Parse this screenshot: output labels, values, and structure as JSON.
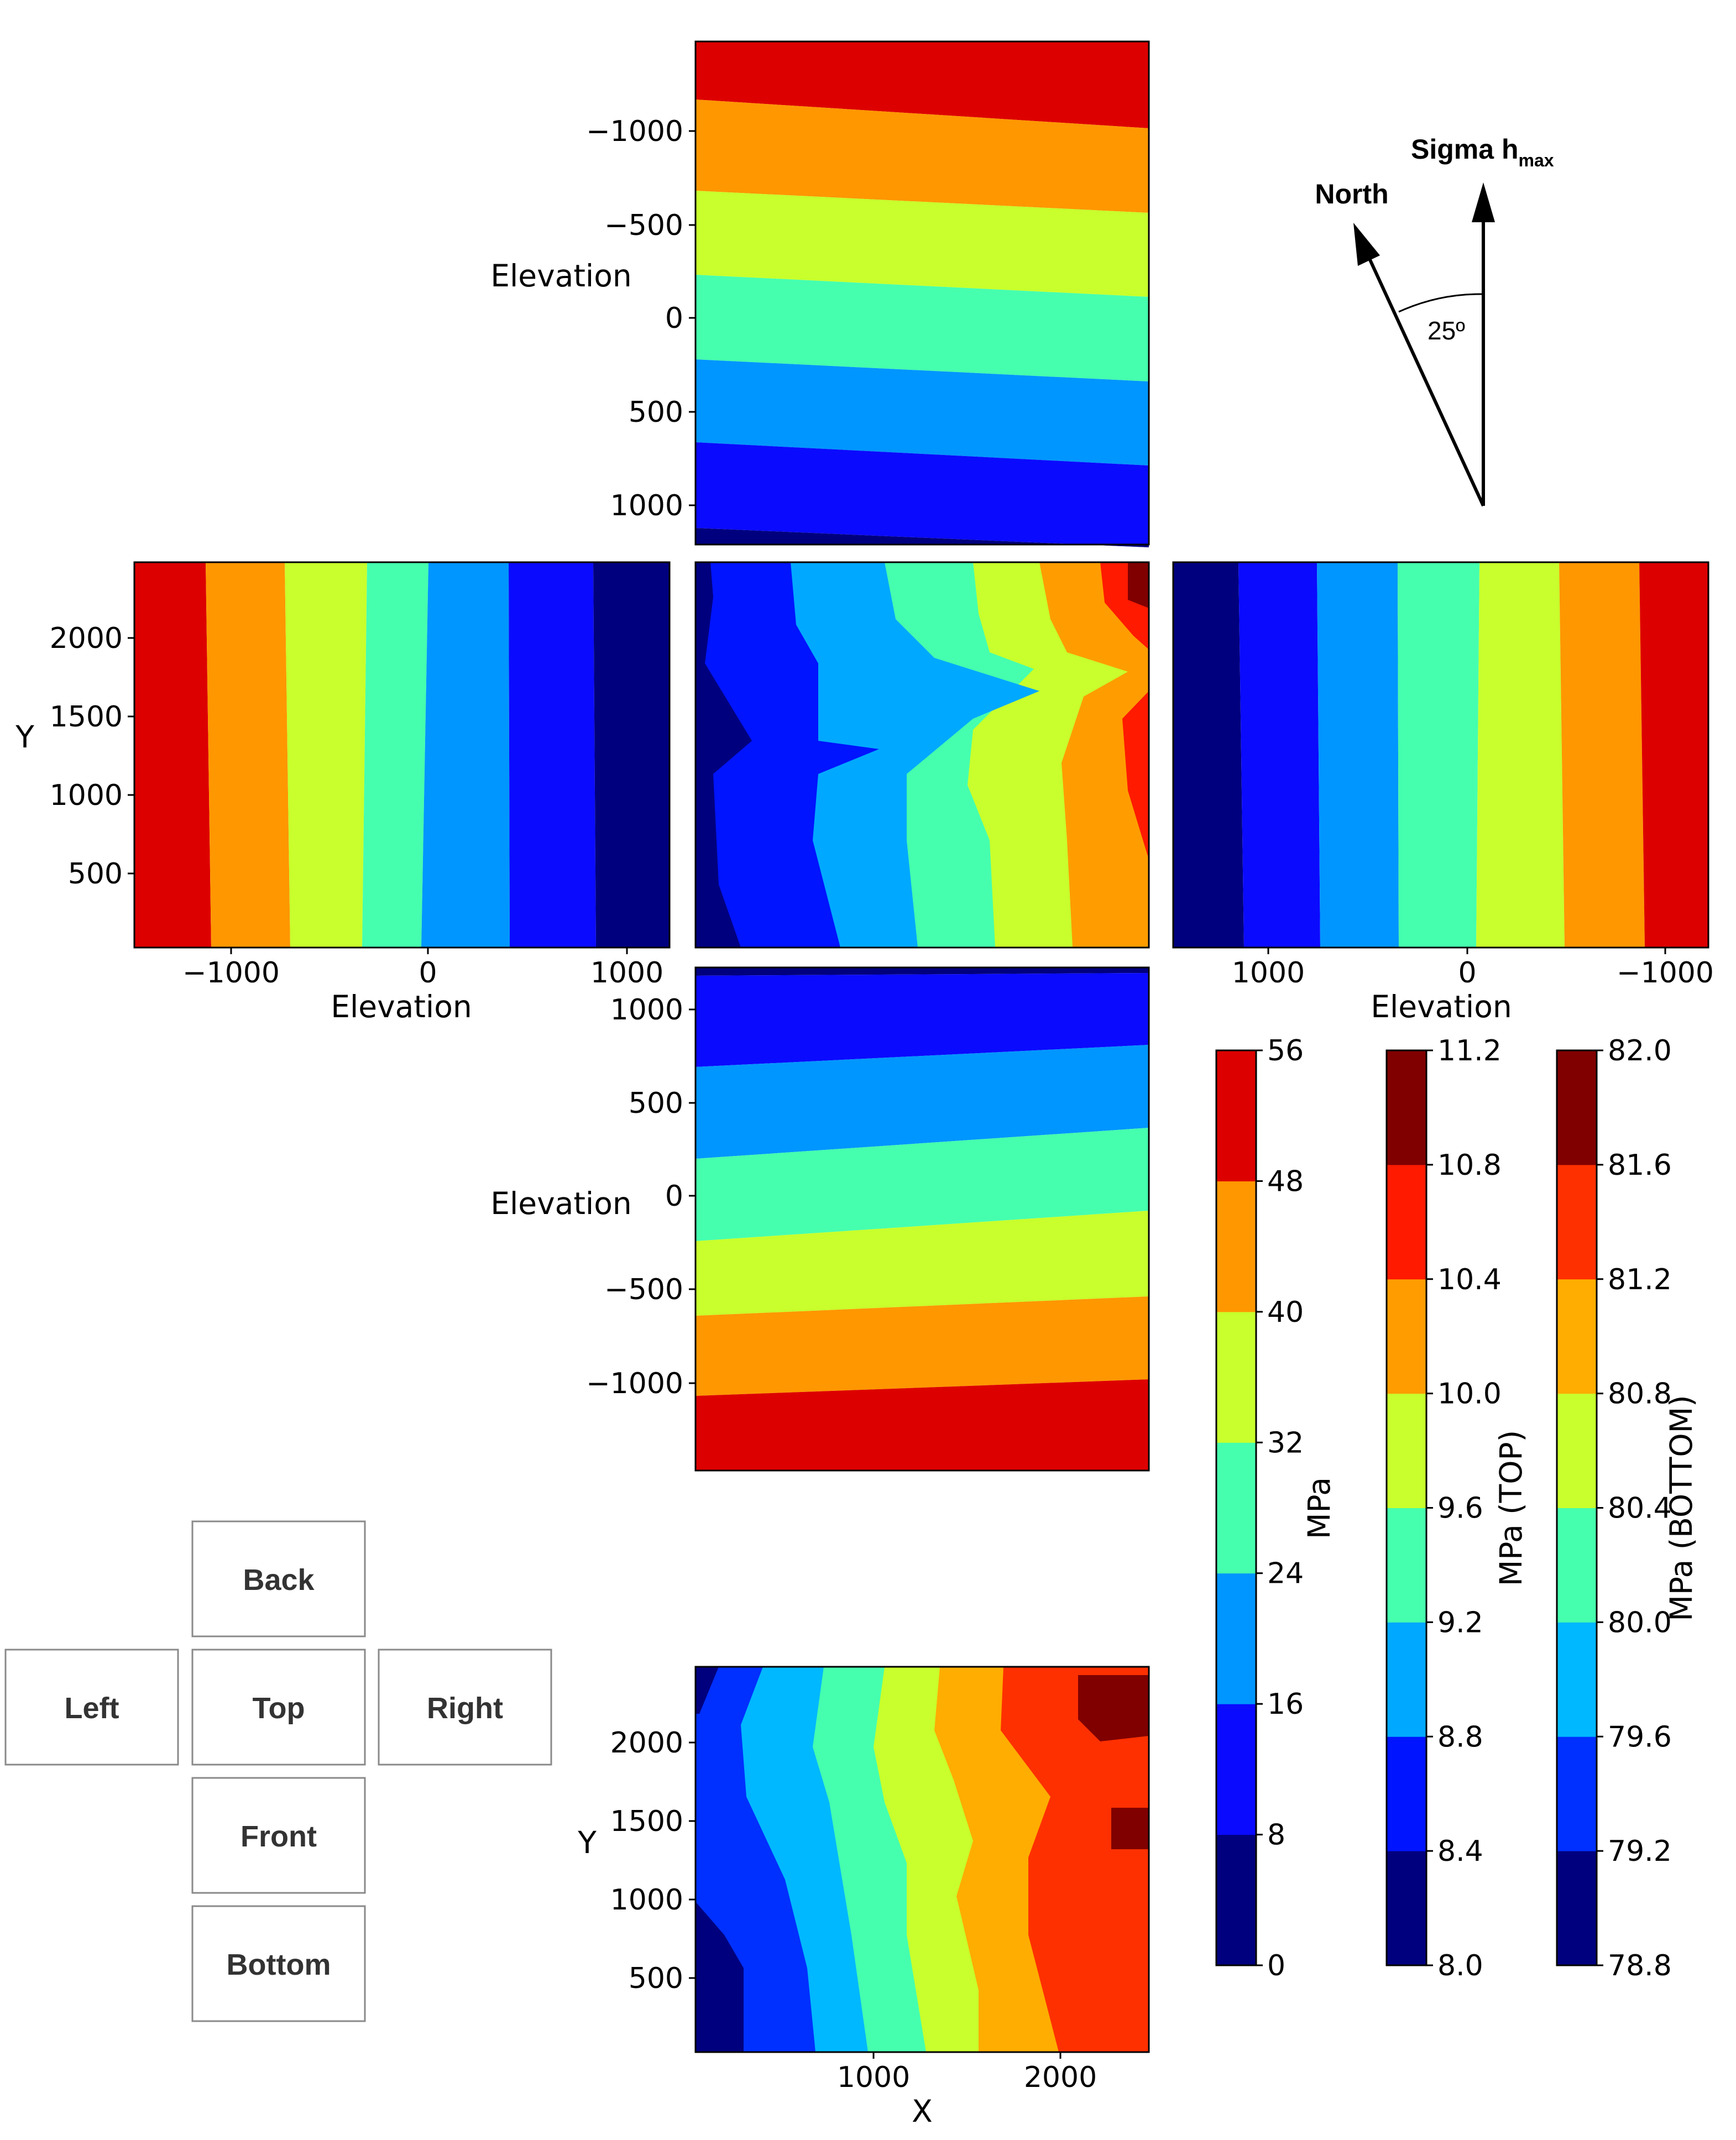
{
  "chart_data": [
    {
      "type": "heatmap",
      "face": "back",
      "xlabel": "",
      "ylabel": "Elevation",
      "yticks": [
        "−1000",
        "−500",
        "0",
        "500",
        "1000"
      ],
      "colorbar": "MPa",
      "bands_top_to_bottom": [
        "48-56",
        "40-48",
        "32-40",
        "24-32",
        "16-24",
        "8-16",
        "0-8"
      ]
    },
    {
      "type": "heatmap",
      "face": "left",
      "xlabel": "Elevation",
      "ylabel": "Y",
      "xticks": [
        "−1000",
        "0",
        "1000"
      ],
      "yticks": [
        "2000",
        "1500",
        "1000",
        "500"
      ],
      "colorbar": "MPa",
      "bands_left_to_right": [
        "48-56",
        "40-48",
        "32-40",
        "24-32",
        "16-24",
        "8-16",
        "0-8"
      ]
    },
    {
      "type": "heatmap",
      "face": "top",
      "colorbar": "MPa (TOP)",
      "bands_left_to_right": [
        "8.0-8.4",
        "8.4-8.8",
        "8.8-9.2",
        "9.2-9.6",
        "9.6-10.0",
        "10.0-10.4",
        "10.4-10.8",
        "10.8-11.2"
      ]
    },
    {
      "type": "heatmap",
      "face": "right",
      "xlabel": "Elevation",
      "xticks": [
        "1000",
        "0",
        "−1000"
      ],
      "colorbar": "MPa",
      "bands_left_to_right": [
        "0-8",
        "8-16",
        "16-24",
        "24-32",
        "32-40",
        "40-48",
        "48-56"
      ]
    },
    {
      "type": "heatmap",
      "face": "front",
      "ylabel": "Elevation",
      "yticks": [
        "1000",
        "500",
        "0",
        "−500",
        "−1000"
      ],
      "colorbar": "MPa",
      "bands_top_to_bottom": [
        "8-16",
        "16-24",
        "24-32",
        "32-40",
        "40-48",
        "48-56"
      ]
    },
    {
      "type": "heatmap",
      "face": "bottom",
      "xlabel": "X",
      "ylabel": "Y",
      "xticks": [
        "1000",
        "2000"
      ],
      "yticks": [
        "2000",
        "1500",
        "1000",
        "500"
      ],
      "colorbar": "MPa (BOTTOM)",
      "bands_left_to_right": [
        "78.8-79.2",
        "79.2-79.6",
        "79.6-80.0",
        "80.0-80.4",
        "80.4-80.8",
        "80.8-81.2",
        "81.2-81.6",
        "81.6-82.0"
      ]
    }
  ],
  "colorbars": [
    {
      "label": "MPa",
      "ticks": [
        "56",
        "48",
        "40",
        "32",
        "24",
        "16",
        "8",
        "0"
      ]
    },
    {
      "label": "MPa (TOP)",
      "ticks": [
        "11.2",
        "10.8",
        "10.4",
        "10.0",
        "9.6",
        "9.2",
        "8.8",
        "8.4",
        "8.0"
      ]
    },
    {
      "label": "MPa (BOTTOM)",
      "ticks": [
        "82.0",
        "81.6",
        "81.2",
        "80.8",
        "80.4",
        "80.0",
        "79.6",
        "79.2",
        "78.8"
      ]
    }
  ],
  "compass": {
    "north_label": "North",
    "sigma_label": "Sigma h",
    "sigma_subscript": "max",
    "angle_label": "25º"
  },
  "face_key": {
    "back": "Back",
    "left": "Left",
    "top": "Top",
    "right": "Right",
    "front": "Front",
    "bottom": "Bottom"
  },
  "colors": {
    "stress7": [
      "#00007f",
      "#0a0aff",
      "#0096ff",
      "#45ffae",
      "#c8ff2c",
      "#ff9700",
      "#dd0000"
    ],
    "stress8_top": [
      "#00007f",
      "#0014ff",
      "#00a9ff",
      "#45ffae",
      "#c8ff2c",
      "#ff9d00",
      "#ff1a00",
      "#800000"
    ],
    "stress8_bottom": [
      "#00007f",
      "#0030ff",
      "#00b8ff",
      "#45ffae",
      "#c8ff2c",
      "#ffad00",
      "#ff3000",
      "#800000"
    ]
  }
}
